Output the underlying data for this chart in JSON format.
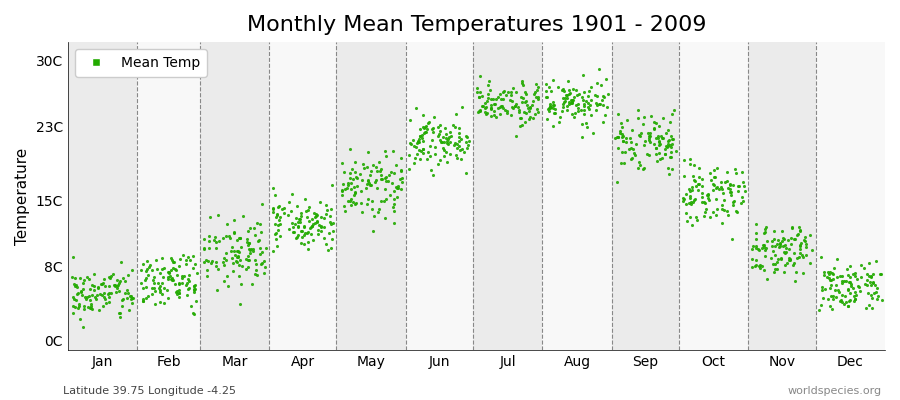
{
  "title": "Monthly Mean Temperatures 1901 - 2009",
  "ylabel": "Temperature",
  "xlabel_bottom": "Latitude 39.75 Longitude -4.25",
  "watermark": "worldspecies.org",
  "dot_color": "#22aa00",
  "background_color": "#ffffff",
  "band_color_odd": "#ebebeb",
  "band_color_even": "#f8f8f8",
  "yticks": [
    0,
    8,
    15,
    23,
    30
  ],
  "ytick_labels": [
    "0C",
    "8C",
    "15C",
    "23C",
    "30C"
  ],
  "ylim": [
    -1,
    32
  ],
  "months": [
    "Jan",
    "Feb",
    "Mar",
    "Apr",
    "May",
    "Jun",
    "Jul",
    "Aug",
    "Sep",
    "Oct",
    "Nov",
    "Dec"
  ],
  "month_means": [
    5.0,
    6.5,
    9.5,
    12.5,
    16.5,
    21.5,
    25.5,
    25.5,
    21.0,
    15.5,
    9.5,
    6.0
  ],
  "month_stds": [
    1.4,
    1.4,
    1.6,
    1.6,
    1.6,
    1.5,
    1.2,
    1.2,
    1.6,
    1.6,
    1.4,
    1.4
  ],
  "n_years": 109,
  "dot_size": 5,
  "dot_alpha": 0.9,
  "legend_label": "Mean Temp",
  "title_fontsize": 16,
  "axis_fontsize": 11,
  "tick_fontsize": 10,
  "month_days": [
    31,
    28,
    31,
    30,
    31,
    30,
    31,
    31,
    30,
    31,
    30,
    31
  ]
}
